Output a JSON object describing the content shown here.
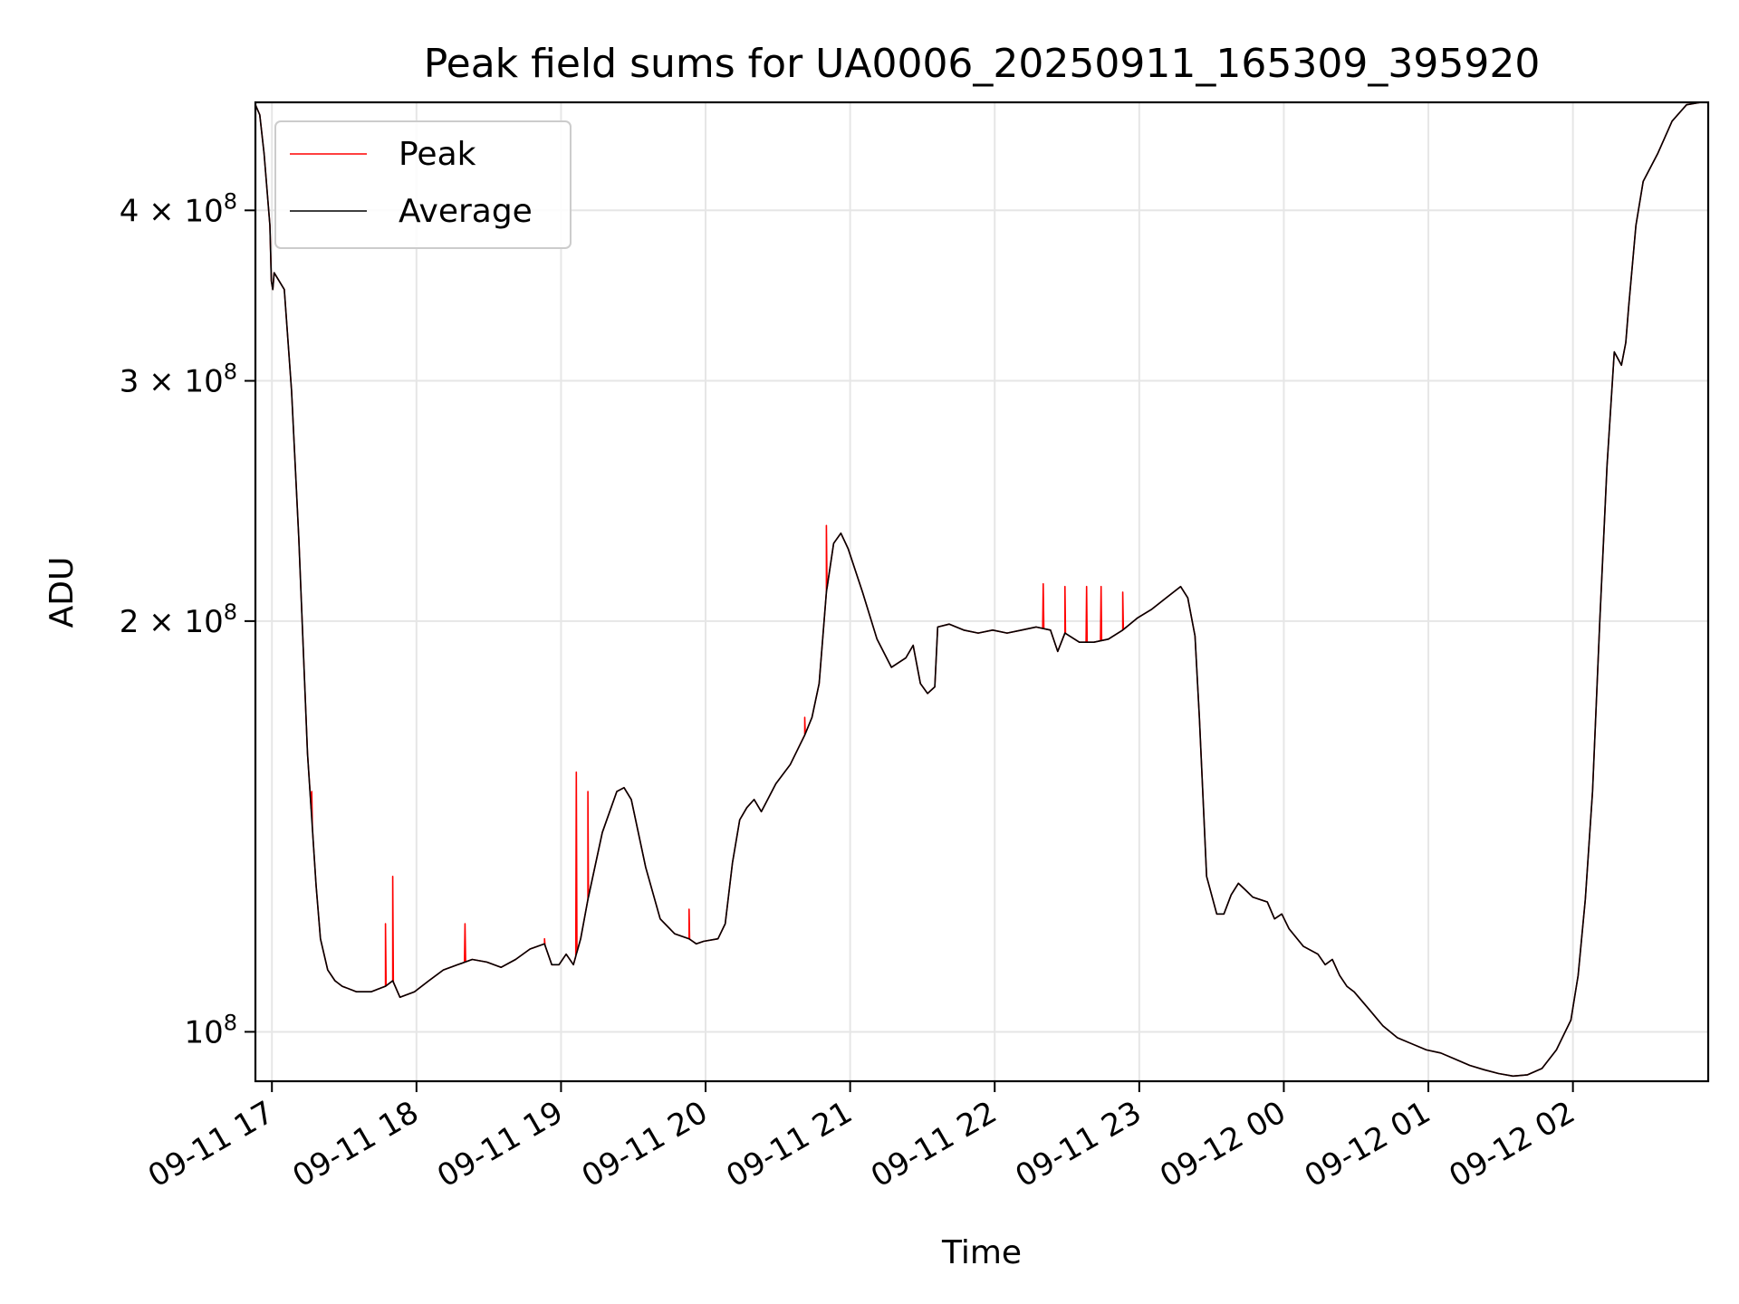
{
  "chart_data": {
    "type": "line",
    "title": "Peak field sums for UA0006_20250911_165309_395920",
    "xlabel": "Time",
    "ylabel": "ADU",
    "x_ticks": [
      {
        "hours": 0.1142,
        "label": "09-11 17"
      },
      {
        "hours": 1.1142,
        "label": "09-11 18"
      },
      {
        "hours": 2.1142,
        "label": "09-11 19"
      },
      {
        "hours": 3.1142,
        "label": "09-11 20"
      },
      {
        "hours": 4.1142,
        "label": "09-11 21"
      },
      {
        "hours": 5.1142,
        "label": "09-11 22"
      },
      {
        "hours": 6.1142,
        "label": "09-11 23"
      },
      {
        "hours": 7.1142,
        "label": "09-12 00"
      },
      {
        "hours": 8.1142,
        "label": "09-12 01"
      },
      {
        "hours": 9.1142,
        "label": "09-12 02"
      }
    ],
    "y_ticks": [
      {
        "value": 100000000,
        "mantissa": "",
        "exponent": "8"
      },
      {
        "value": 200000000,
        "mantissa": "2",
        "exponent": "8"
      },
      {
        "value": 300000000,
        "mantissa": "3",
        "exponent": "8"
      },
      {
        "value": 400000000,
        "mantissa": "4",
        "exponent": "8"
      }
    ],
    "y_tick_times": "×",
    "y_tick_base": "10",
    "xlim_hours": [
      0,
      10.05
    ],
    "ylim": [
      92000000,
      480000000
    ],
    "yscale": "log",
    "grid": true,
    "legend_position": "upper-left",
    "series": [
      {
        "name": "Peak",
        "color": "#ff0000",
        "spikes": [
          {
            "hours": 0.39,
            "value": 150000000
          },
          {
            "hours": 0.9,
            "value": 120000000
          },
          {
            "hours": 0.95,
            "value": 130000000
          },
          {
            "hours": 1.45,
            "value": 120000000
          },
          {
            "hours": 2.0,
            "value": 117000000
          },
          {
            "hours": 2.22,
            "value": 155000000
          },
          {
            "hours": 2.3,
            "value": 150000000
          },
          {
            "hours": 3.0,
            "value": 123000000
          },
          {
            "hours": 3.8,
            "value": 170000000
          },
          {
            "hours": 3.95,
            "value": 235000000
          },
          {
            "hours": 5.45,
            "value": 213000000
          },
          {
            "hours": 5.6,
            "value": 212000000
          },
          {
            "hours": 5.75,
            "value": 212000000
          },
          {
            "hours": 5.85,
            "value": 212000000
          },
          {
            "hours": 6.0,
            "value": 210000000
          }
        ]
      },
      {
        "name": "Average",
        "color": "#000000",
        "points": [
          [
            0.0,
            478000000
          ],
          [
            0.03,
            470000000
          ],
          [
            0.06,
            440000000
          ],
          [
            0.1,
            390000000
          ],
          [
            0.11,
            355000000
          ],
          [
            0.12,
            350000000
          ],
          [
            0.13,
            360000000
          ],
          [
            0.2,
            350000000
          ],
          [
            0.25,
            295000000
          ],
          [
            0.3,
            230000000
          ],
          [
            0.36,
            160000000
          ],
          [
            0.4,
            138000000
          ],
          [
            0.42,
            128000000
          ],
          [
            0.45,
            117000000
          ],
          [
            0.5,
            111000000
          ],
          [
            0.55,
            109000000
          ],
          [
            0.6,
            108000000
          ],
          [
            0.7,
            107000000
          ],
          [
            0.8,
            107000000
          ],
          [
            0.85,
            107500000
          ],
          [
            0.9,
            108000000
          ],
          [
            0.95,
            109000000
          ],
          [
            1.0,
            106000000
          ],
          [
            1.05,
            106500000
          ],
          [
            1.1,
            107000000
          ],
          [
            1.2,
            109000000
          ],
          [
            1.3,
            111000000
          ],
          [
            1.4,
            112000000
          ],
          [
            1.5,
            113000000
          ],
          [
            1.6,
            112500000
          ],
          [
            1.7,
            111500000
          ],
          [
            1.8,
            113000000
          ],
          [
            1.9,
            115000000
          ],
          [
            2.0,
            116000000
          ],
          [
            2.05,
            112000000
          ],
          [
            2.1,
            112000000
          ],
          [
            2.15,
            114000000
          ],
          [
            2.2,
            112000000
          ],
          [
            2.25,
            117000000
          ],
          [
            2.3,
            125000000
          ],
          [
            2.4,
            140000000
          ],
          [
            2.5,
            150000000
          ],
          [
            2.55,
            151000000
          ],
          [
            2.6,
            148000000
          ],
          [
            2.7,
            132000000
          ],
          [
            2.8,
            121000000
          ],
          [
            2.9,
            118000000
          ],
          [
            3.0,
            117000000
          ],
          [
            3.05,
            116000000
          ],
          [
            3.1,
            116500000
          ],
          [
            3.2,
            117000000
          ],
          [
            3.25,
            120000000
          ],
          [
            3.3,
            133000000
          ],
          [
            3.35,
            143000000
          ],
          [
            3.4,
            146000000
          ],
          [
            3.45,
            148000000
          ],
          [
            3.5,
            145000000
          ],
          [
            3.6,
            152000000
          ],
          [
            3.7,
            157000000
          ],
          [
            3.8,
            165000000
          ],
          [
            3.85,
            170000000
          ],
          [
            3.9,
            180000000
          ],
          [
            3.95,
            210000000
          ],
          [
            4.0,
            228000000
          ],
          [
            4.05,
            232000000
          ],
          [
            4.1,
            226000000
          ],
          [
            4.2,
            210000000
          ],
          [
            4.3,
            194000000
          ],
          [
            4.4,
            185000000
          ],
          [
            4.5,
            188000000
          ],
          [
            4.55,
            192000000
          ],
          [
            4.6,
            180000000
          ],
          [
            4.65,
            177000000
          ],
          [
            4.7,
            179000000
          ],
          [
            4.72,
            198000000
          ],
          [
            4.8,
            199000000
          ],
          [
            4.9,
            197000000
          ],
          [
            5.0,
            196000000
          ],
          [
            5.1,
            197000000
          ],
          [
            5.2,
            196000000
          ],
          [
            5.3,
            197000000
          ],
          [
            5.4,
            198000000
          ],
          [
            5.5,
            197000000
          ],
          [
            5.55,
            190000000
          ],
          [
            5.6,
            196000000
          ],
          [
            5.7,
            193000000
          ],
          [
            5.8,
            193000000
          ],
          [
            5.9,
            194000000
          ],
          [
            6.0,
            197000000
          ],
          [
            6.1,
            201000000
          ],
          [
            6.2,
            204000000
          ],
          [
            6.3,
            208000000
          ],
          [
            6.4,
            212000000
          ],
          [
            6.45,
            208000000
          ],
          [
            6.5,
            195000000
          ],
          [
            6.53,
            170000000
          ],
          [
            6.58,
            130000000
          ],
          [
            6.65,
            122000000
          ],
          [
            6.7,
            122000000
          ],
          [
            6.75,
            126000000
          ],
          [
            6.8,
            128500000
          ],
          [
            6.85,
            127000000
          ],
          [
            6.9,
            125500000
          ],
          [
            7.0,
            124500000
          ],
          [
            7.05,
            121000000
          ],
          [
            7.1,
            122000000
          ],
          [
            7.15,
            119000000
          ],
          [
            7.25,
            115500000
          ],
          [
            7.35,
            114000000
          ],
          [
            7.4,
            112000000
          ],
          [
            7.45,
            113000000
          ],
          [
            7.5,
            110000000
          ],
          [
            7.55,
            108000000
          ],
          [
            7.6,
            107000000
          ],
          [
            7.7,
            104000000
          ],
          [
            7.8,
            101000000
          ],
          [
            7.9,
            99000000
          ],
          [
            8.0,
            98000000
          ],
          [
            8.1,
            97000000
          ],
          [
            8.2,
            96500000
          ],
          [
            8.3,
            95500000
          ],
          [
            8.4,
            94500000
          ],
          [
            8.5,
            93800000
          ],
          [
            8.6,
            93200000
          ],
          [
            8.7,
            92800000
          ],
          [
            8.8,
            93000000
          ],
          [
            8.9,
            94000000
          ],
          [
            9.0,
            97000000
          ],
          [
            9.1,
            102000000
          ],
          [
            9.15,
            110000000
          ],
          [
            9.2,
            125000000
          ],
          [
            9.25,
            150000000
          ],
          [
            9.3,
            200000000
          ],
          [
            9.35,
            260000000
          ],
          [
            9.4,
            315000000
          ],
          [
            9.45,
            308000000
          ],
          [
            9.48,
            320000000
          ],
          [
            9.5,
            340000000
          ],
          [
            9.55,
            390000000
          ],
          [
            9.6,
            420000000
          ],
          [
            9.7,
            440000000
          ],
          [
            9.8,
            465000000
          ],
          [
            9.9,
            478000000
          ],
          [
            10.0,
            480000000
          ]
        ]
      }
    ]
  }
}
